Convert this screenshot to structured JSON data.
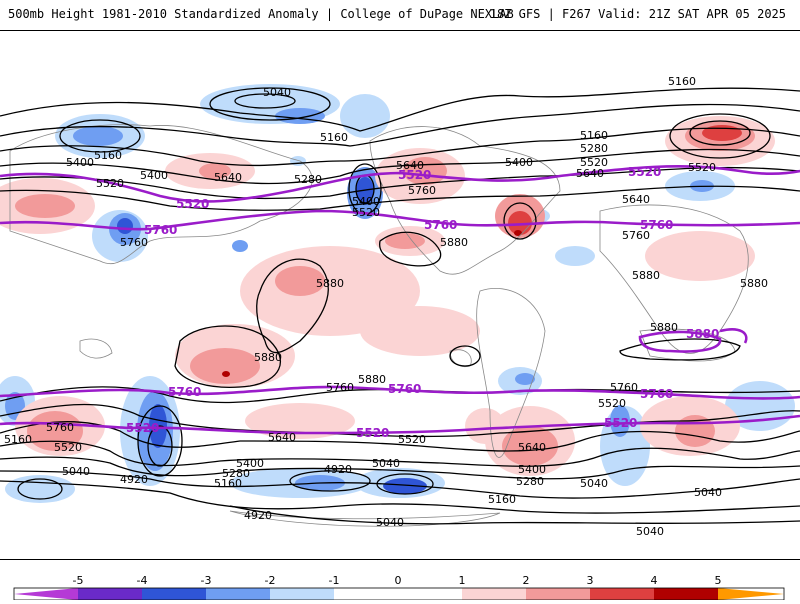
{
  "header": {
    "left": "500mb Height 1981-2010 Standardized Anomaly | College of DuPage NEXLAB",
    "right": "18Z GFS | F267 Valid: 21Z SAT APR 05 2025"
  },
  "colors": {
    "contour": "#000000",
    "highlight_contour": "#9a1cc9",
    "neg1": "#bfdcfb",
    "neg2": "#6f9ef2",
    "neg3": "#2f55d6",
    "neg4": "#6a2ac8",
    "neg5": "#b53ad6",
    "pos1": "#fbd4d4",
    "pos2": "#f29a9a",
    "pos3": "#de4040",
    "pos4": "#b00000",
    "pos5": "#ff9900"
  },
  "contour_labels": {
    "black": [
      "5040",
      "5160",
      "5280",
      "5400",
      "5520",
      "5640",
      "5760",
      "5880",
      "4920",
      "5760",
      "5640",
      "5520",
      "5280",
      "5160",
      "5400",
      "5640",
      "5520",
      "5160",
      "5280",
      "5400",
      "5640",
      "5760",
      "5880",
      "5880",
      "5640",
      "5520",
      "5400",
      "5280",
      "5160",
      "5040",
      "4920",
      "5040",
      "5160",
      "5280",
      "5400",
      "5040",
      "5040",
      "5760",
      "5880",
      "5520",
      "5280",
      "5160",
      "5400",
      "5040",
      "5160",
      "5040",
      "5760",
      "5520"
    ],
    "highlight": [
      "5520",
      "5520",
      "5760",
      "5760",
      "5520",
      "5760",
      "5520",
      "5760",
      "5880",
      "5760",
      "5520",
      "5520",
      "5520"
    ]
  },
  "colorbar": {
    "ticks": [
      "-5",
      "-4",
      "-3",
      "-2",
      "-1",
      "0",
      "1",
      "2",
      "3",
      "4",
      "5"
    ]
  }
}
